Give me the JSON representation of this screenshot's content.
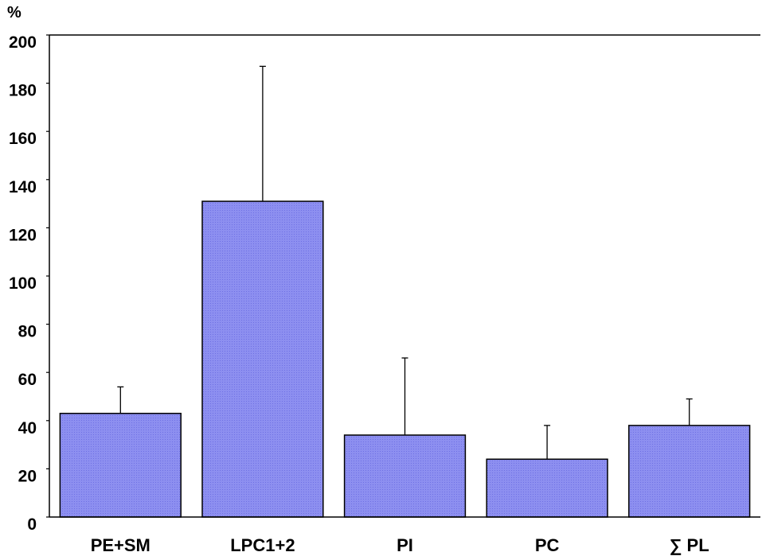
{
  "chart_data": {
    "type": "bar",
    "title": "",
    "xlabel": "",
    "ylabel": "%",
    "ylim": [
      0,
      200
    ],
    "yticks": [
      0,
      20,
      40,
      60,
      80,
      100,
      120,
      140,
      160,
      180,
      200
    ],
    "categories": [
      "PE+SM",
      "LPC1+2",
      "PI",
      "PC",
      "∑ PL"
    ],
    "values": [
      43,
      131,
      34,
      24,
      38
    ],
    "error_upper": [
      54,
      187,
      66,
      38,
      49
    ],
    "grid": false,
    "legend": "none",
    "bar_fill": "#8d8ff0",
    "bar_hatch": "#6b6de0",
    "bar_stroke": "#000000",
    "axis_color": "#000000"
  }
}
